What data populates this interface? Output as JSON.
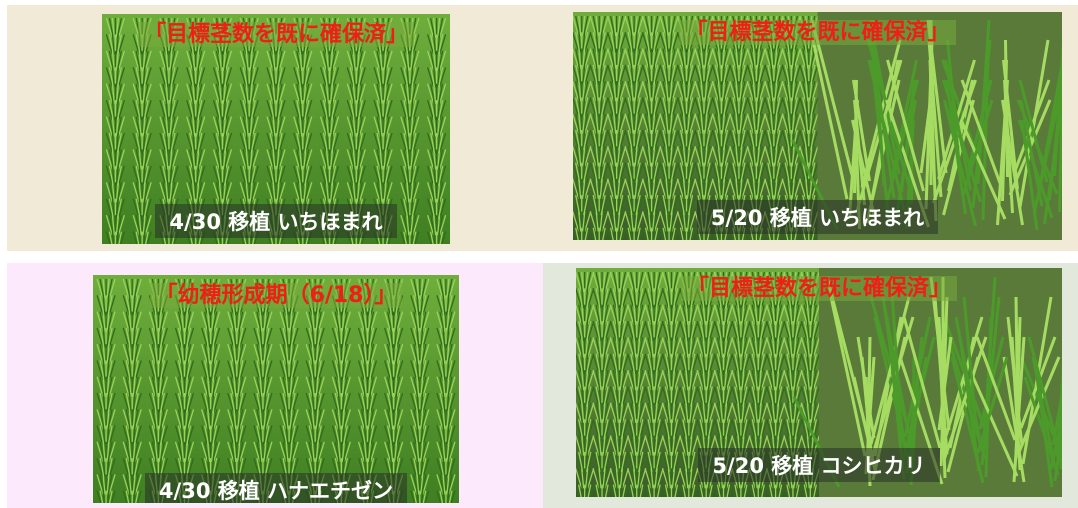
{
  "panels": [
    {
      "label": "「目標茎数を既に確保済」",
      "caption": "4/30 移植 いちほまれ"
    },
    {
      "label": "「目標茎数を既に確保済」",
      "caption": "5/20 移植 いちほまれ"
    },
    {
      "label": "「幼穂形成期（6/18）」",
      "caption": "4/30 移植 ハナエチゼン"
    },
    {
      "label": "「目標茎数を既に確保済」",
      "caption": "5/20 移植 コシヒカリ"
    }
  ]
}
